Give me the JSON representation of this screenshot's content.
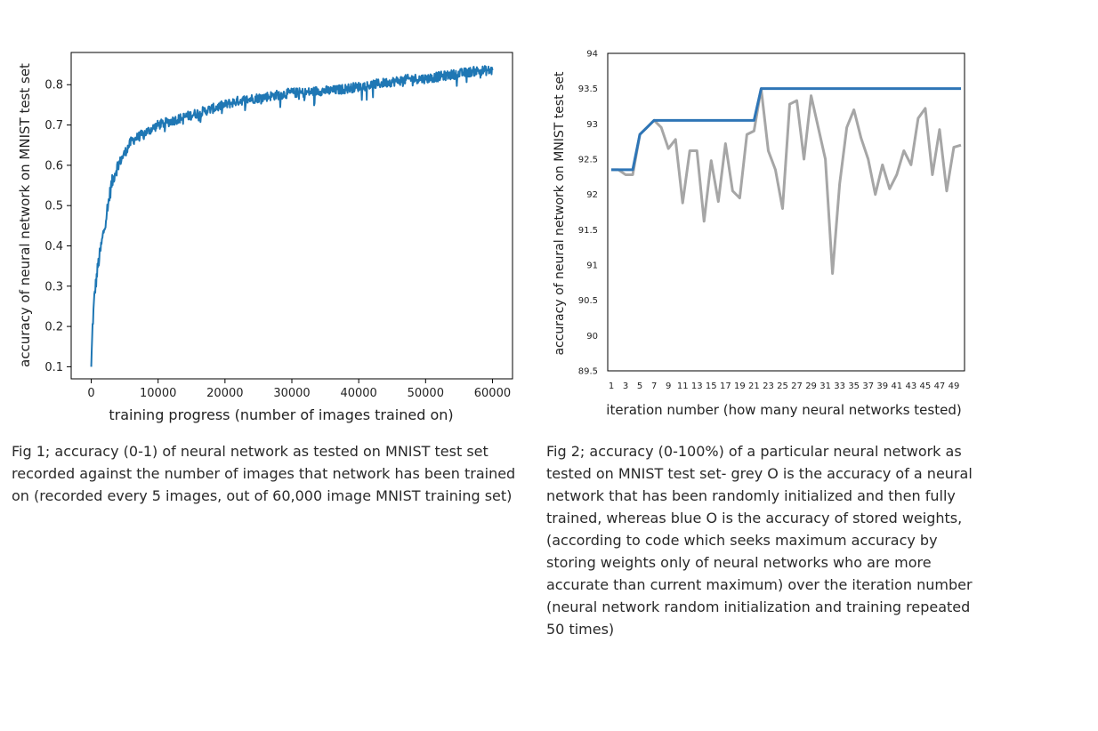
{
  "chart_data": [
    {
      "type": "line",
      "title": "",
      "xlabel": "training progress (number of images trained on)",
      "ylabel": "accuracy of neural network on MNIST test set",
      "xlim": [
        -3000,
        63000
      ],
      "ylim": [
        0.07,
        0.88
      ],
      "xticks": [
        0,
        10000,
        20000,
        30000,
        40000,
        50000,
        60000
      ],
      "yticks": [
        0.1,
        0.2,
        0.3,
        0.4,
        0.5,
        0.6,
        0.7,
        0.8
      ],
      "grid": false,
      "series": [
        {
          "color": "#1f77b4",
          "noisy": true,
          "x": [
            0,
            200,
            500,
            1000,
            1500,
            2000,
            2500,
            3000,
            3500,
            4000,
            5000,
            6000,
            7000,
            8000,
            9000,
            10000,
            12000,
            14000,
            16000,
            18000,
            20000,
            22000,
            24000,
            26000,
            28000,
            30000,
            32000,
            34000,
            36000,
            38000,
            40000,
            42000,
            44000,
            46000,
            48000,
            50000,
            52000,
            54000,
            56000,
            58000,
            60000
          ],
          "y": [
            0.1,
            0.2,
            0.28,
            0.35,
            0.4,
            0.45,
            0.5,
            0.55,
            0.58,
            0.6,
            0.63,
            0.66,
            0.67,
            0.68,
            0.69,
            0.7,
            0.71,
            0.72,
            0.73,
            0.74,
            0.75,
            0.76,
            0.765,
            0.77,
            0.775,
            0.78,
            0.78,
            0.785,
            0.785,
            0.79,
            0.795,
            0.8,
            0.805,
            0.81,
            0.815,
            0.815,
            0.82,
            0.825,
            0.83,
            0.835,
            0.835
          ]
        }
      ]
    },
    {
      "type": "line",
      "title": "",
      "xlabel": "iteration number (how many neural networks tested)",
      "ylabel": "accuracy of neural network on MNIST test set",
      "xlim": [
        0.5,
        50.5
      ],
      "ylim": [
        89.5,
        94
      ],
      "xticks": [
        "1",
        "3",
        "5",
        "7",
        "9",
        "11",
        "13",
        "15",
        "17",
        "19",
        "21",
        "23",
        "25",
        "27",
        "29",
        "31",
        "33",
        "35",
        "37",
        "39",
        "41",
        "43",
        "45",
        "47",
        "49"
      ],
      "yticks": [
        "89.5",
        "90",
        "90.5",
        "91",
        "91.5",
        "92",
        "92.5",
        "93",
        "93.5",
        "94"
      ],
      "grid": false,
      "series": [
        {
          "name": "grey O",
          "color": "#a6a6a6",
          "x": [
            1,
            2,
            3,
            4,
            5,
            6,
            7,
            8,
            9,
            10,
            11,
            12,
            13,
            14,
            15,
            16,
            17,
            18,
            19,
            20,
            21,
            22,
            23,
            24,
            25,
            26,
            27,
            28,
            29,
            30,
            31,
            32,
            33,
            34,
            35,
            36,
            37,
            38,
            39,
            40,
            41,
            42,
            43,
            44,
            45,
            46,
            47,
            48,
            49,
            50
          ],
          "y": [
            92.35,
            92.35,
            92.28,
            92.28,
            92.85,
            92.95,
            93.05,
            92.95,
            92.65,
            92.78,
            91.88,
            92.62,
            92.62,
            91.62,
            92.48,
            91.9,
            92.72,
            92.05,
            91.95,
            92.85,
            92.9,
            93.5,
            92.62,
            92.35,
            91.8,
            93.28,
            93.33,
            92.5,
            93.4,
            92.95,
            92.5,
            90.88,
            92.15,
            92.95,
            93.2,
            92.8,
            92.5,
            92.0,
            92.42,
            92.08,
            92.28,
            92.62,
            92.42,
            93.08,
            93.22,
            92.28,
            92.92,
            92.05,
            92.67,
            92.7
          ]
        },
        {
          "name": "blue O",
          "color": "#2e75b6",
          "x": [
            1,
            2,
            3,
            4,
            5,
            6,
            7,
            8,
            9,
            10,
            11,
            12,
            13,
            14,
            15,
            16,
            17,
            18,
            19,
            20,
            21,
            22,
            23,
            24,
            25,
            26,
            27,
            28,
            29,
            30,
            31,
            32,
            33,
            34,
            35,
            36,
            37,
            38,
            39,
            40,
            41,
            42,
            43,
            44,
            45,
            46,
            47,
            48,
            49,
            50
          ],
          "y": [
            92.35,
            92.35,
            92.35,
            92.35,
            92.85,
            92.95,
            93.05,
            93.05,
            93.05,
            93.05,
            93.05,
            93.05,
            93.05,
            93.05,
            93.05,
            93.05,
            93.05,
            93.05,
            93.05,
            93.05,
            93.05,
            93.5,
            93.5,
            93.5,
            93.5,
            93.5,
            93.5,
            93.5,
            93.5,
            93.5,
            93.5,
            93.5,
            93.5,
            93.5,
            93.5,
            93.5,
            93.5,
            93.5,
            93.5,
            93.5,
            93.5,
            93.5,
            93.5,
            93.5,
            93.5,
            93.5,
            93.5,
            93.5,
            93.5,
            93.5
          ]
        }
      ]
    }
  ],
  "captions": {
    "fig1": "Fig 1; accuracy (0-1) of neural network as tested on MNIST test set recorded against the number of images that network has been trained on (recorded every 5 images, out of 60,000 image MNIST training set)",
    "fig2": "Fig 2; accuracy (0-100%) of a particular neural network as tested on MNIST test set- grey O is the accuracy of a neural network that has been randomly initialized and then fully trained, whereas blue O is the accuracy of stored weights, (according to code which seeks maximum accuracy by storing weights only of neural networks who are more accurate than current maximum) over the iteration number (neural network random initialization and training repeated 50 times)"
  }
}
